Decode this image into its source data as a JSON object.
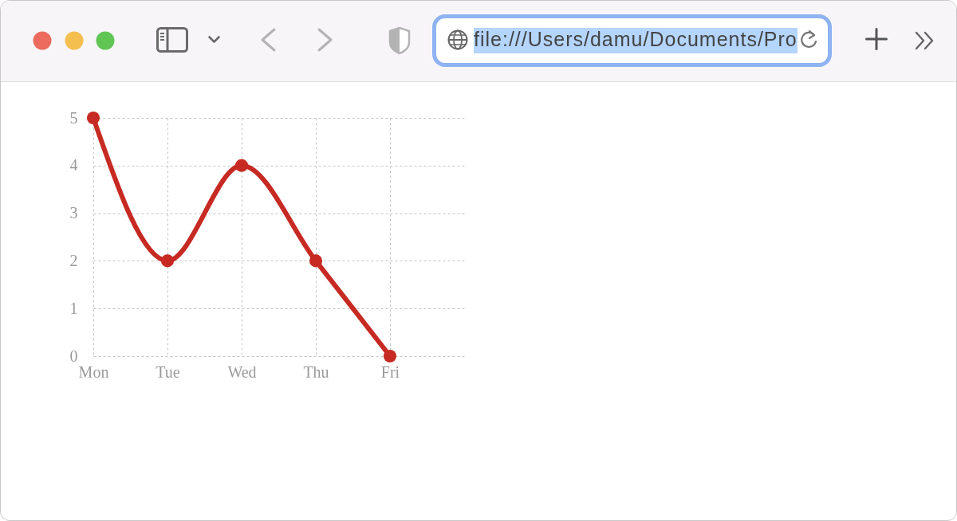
{
  "chart_data": {
    "type": "line",
    "categories": [
      "Mon",
      "Tue",
      "Wed",
      "Thu",
      "Fri"
    ],
    "series": [
      {
        "color": "#c62a22",
        "values": [
          5,
          2,
          4,
          2,
          0
        ]
      }
    ],
    "ylim": [
      0,
      5
    ],
    "yticks": [
      0,
      1,
      2,
      3,
      4,
      5
    ],
    "grid": true,
    "marker": "circle",
    "line_style": "solid",
    "annotations": [
      "file:///Users/damu/Documents/Pro"
    ]
  }
}
